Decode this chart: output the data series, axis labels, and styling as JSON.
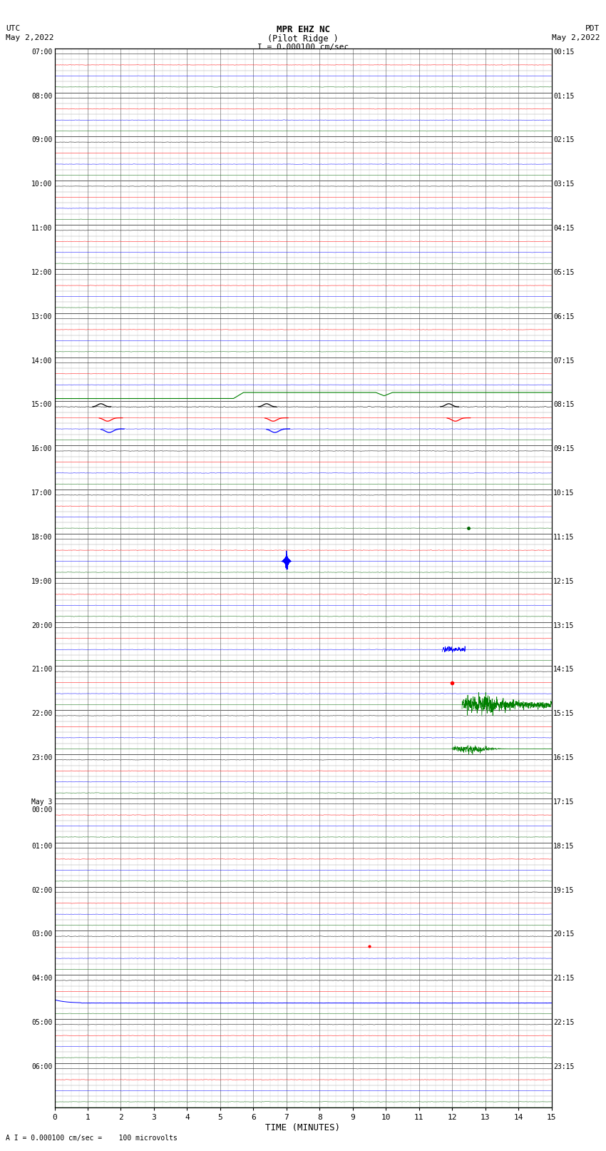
{
  "title_line1": "MPR EHZ NC",
  "title_line2": "(Pilot Ridge )",
  "scale_label": "I = 0.000100 cm/sec",
  "utc_label": "UTC",
  "utc_date": "May 2,2022",
  "pdt_label": "PDT",
  "pdt_date": "May 2,2022",
  "footer_label": "A I = 0.000100 cm/sec =    100 microvolts",
  "xlabel": "TIME (MINUTES)",
  "left_times": [
    "07:00",
    "08:00",
    "09:00",
    "10:00",
    "11:00",
    "12:00",
    "13:00",
    "14:00",
    "15:00",
    "16:00",
    "17:00",
    "18:00",
    "19:00",
    "20:00",
    "21:00",
    "22:00",
    "23:00",
    "May 3\n00:00",
    "01:00",
    "02:00",
    "03:00",
    "04:00",
    "05:00",
    "06:00"
  ],
  "right_times": [
    "00:15",
    "01:15",
    "02:15",
    "03:15",
    "04:15",
    "05:15",
    "06:15",
    "07:15",
    "08:15",
    "09:15",
    "10:15",
    "11:15",
    "12:15",
    "13:15",
    "14:15",
    "15:15",
    "16:15",
    "17:15",
    "18:15",
    "19:15",
    "20:15",
    "21:15",
    "22:15",
    "23:15"
  ],
  "n_hours": 24,
  "sub_rows": 4,
  "x_min": 0,
  "x_max": 15,
  "x_ticks": [
    0,
    1,
    2,
    3,
    4,
    5,
    6,
    7,
    8,
    9,
    10,
    11,
    12,
    13,
    14,
    15
  ],
  "bg_color": "#ffffff"
}
